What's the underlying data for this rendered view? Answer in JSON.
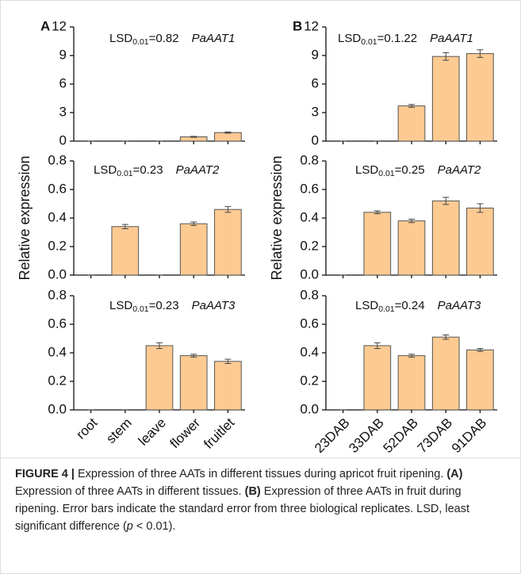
{
  "chart_data": [
    {
      "type": "bar",
      "panel_label": "A",
      "categories": [
        null,
        null,
        null,
        null,
        null
      ],
      "values": [
        0,
        0,
        0,
        0.45,
        0.9
      ],
      "errors": [
        0,
        0,
        0,
        0.05,
        0.07
      ],
      "color": "#fdca92",
      "ylim": [
        0,
        12
      ],
      "yticks": [
        0,
        3,
        6,
        9,
        12
      ],
      "annotation": {
        "prefix": "LSD",
        "subscript": "0.01",
        "suffix": "=0.82"
      },
      "gene": "PaAAT1"
    },
    {
      "type": "bar",
      "ylabel": "Relative expression",
      "categories": [
        null,
        null,
        null,
        null,
        null
      ],
      "values": [
        0,
        0.34,
        0,
        0.36,
        0.46
      ],
      "errors": [
        0,
        0.015,
        0,
        0.012,
        0.02
      ],
      "color": "#fdca92",
      "ylim": [
        0,
        0.8
      ],
      "yticks": [
        {
          "value": 0,
          "label": "0.0"
        },
        0.2,
        0.4,
        0.6,
        0.8
      ],
      "annotation": {
        "prefix": "LSD",
        "subscript": "0.01",
        "suffix": "=0.23"
      },
      "gene": "PaAAT2"
    },
    {
      "type": "bar",
      "categories": [
        "root",
        "stem",
        "leave",
        "flower",
        "fruitlet"
      ],
      "values": [
        0,
        0,
        0.45,
        0.38,
        0.34
      ],
      "errors": [
        0,
        0,
        0.02,
        0.01,
        0.015
      ],
      "color": "#fdca92",
      "ylim": [
        0,
        0.8
      ],
      "yticks": [
        {
          "value": 0,
          "label": "0.0"
        },
        0.2,
        0.4,
        0.6,
        0.8
      ],
      "annotation": {
        "prefix": "LSD",
        "subscript": "0.01",
        "suffix": "=0.23"
      },
      "gene": "PaAAT3"
    },
    {
      "type": "bar",
      "panel_label": "B",
      "categories": [
        null,
        null,
        null,
        null,
        null
      ],
      "values": [
        0,
        0,
        3.7,
        8.9,
        9.2
      ],
      "errors": [
        0,
        0,
        0.15,
        0.4,
        0.4
      ],
      "color": "#fdca92",
      "ylim": [
        0,
        12
      ],
      "yticks": [
        0,
        3,
        6,
        9,
        12
      ],
      "annotation": {
        "prefix": "LSD",
        "subscript": "0.01",
        "suffix": "=0.1.22"
      },
      "gene": "PaAAT1"
    },
    {
      "type": "bar",
      "ylabel": "Relative expression",
      "categories": [
        null,
        null,
        null,
        null,
        null
      ],
      "values": [
        0,
        0.44,
        0.38,
        0.52,
        0.47
      ],
      "errors": [
        0,
        0.01,
        0.012,
        0.025,
        0.03
      ],
      "color": "#fdca92",
      "ylim": [
        0,
        0.8
      ],
      "yticks": [
        {
          "value": 0,
          "label": "0.0"
        },
        0.2,
        0.4,
        0.6,
        0.8
      ],
      "annotation": {
        "prefix": "LSD",
        "subscript": "0.01",
        "suffix": "=0.25"
      },
      "gene": "PaAAT2"
    },
    {
      "type": "bar",
      "categories": [
        "23DAB",
        "33DAB",
        "52DAB",
        "73DAB",
        "91DAB"
      ],
      "values": [
        0,
        0.45,
        0.38,
        0.51,
        0.42
      ],
      "errors": [
        0,
        0.02,
        0.01,
        0.015,
        0.01
      ],
      "color": "#fdca92",
      "ylim": [
        0,
        0.8
      ],
      "yticks": [
        {
          "value": 0,
          "label": "0.0"
        },
        0.2,
        0.4,
        0.6,
        0.8
      ],
      "annotation": {
        "prefix": "LSD",
        "subscript": "0.01",
        "suffix": "=0.24"
      },
      "gene": "PaAAT3"
    }
  ],
  "caption": [
    {
      "text": "FIGURE 4 |",
      "style": "bold"
    },
    {
      "text": " Expression of three AATs in different tissues during apricot fruit ripening. ",
      "style": "normal"
    },
    {
      "text": "(A)",
      "style": "bold"
    },
    {
      "text": " Expression of three AATs in different tissues. ",
      "style": "normal"
    },
    {
      "text": "(B)",
      "style": "bold"
    },
    {
      "text": " Expression of three AATs in fruit during ripening. Error bars indicate the standard error from three biological replicates. LSD, least significant difference (",
      "style": "normal"
    },
    {
      "text": "p",
      "style": "italic"
    },
    {
      "text": " < 0.01).",
      "style": "normal"
    }
  ]
}
